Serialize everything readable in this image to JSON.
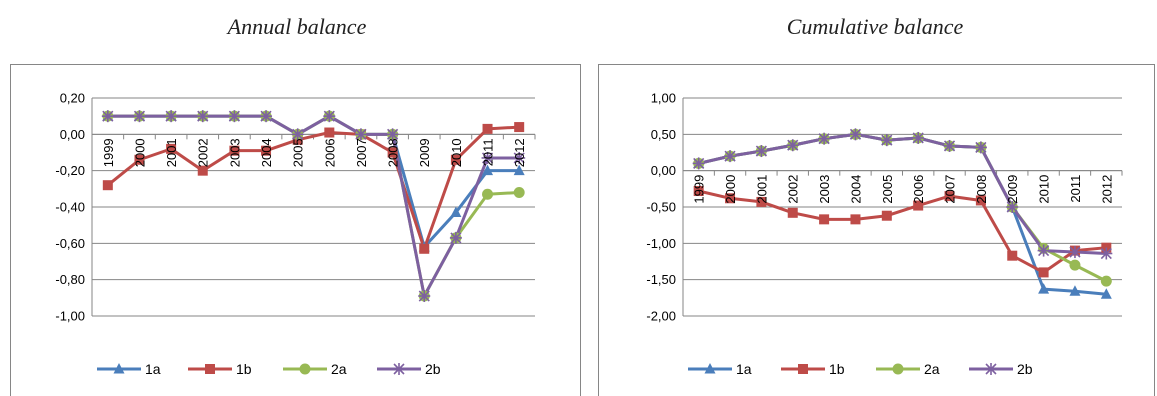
{
  "chart_data": [
    {
      "type": "line",
      "title": "Annual balance",
      "categories": [
        "1999",
        "2000",
        "2001",
        "2002",
        "2003",
        "2004",
        "2005",
        "2006",
        "2007",
        "2008",
        "2009",
        "2010",
        "2011",
        "2012"
      ],
      "ylim": [
        -1.0,
        0.2
      ],
      "yticks": [
        "0,20",
        "0,00",
        "-0,20",
        "-0,40",
        "-0,60",
        "-0,80",
        "-1,00"
      ],
      "ytick_values": [
        0.2,
        0.0,
        -0.2,
        -0.4,
        -0.6,
        -0.8,
        -1.0
      ],
      "grid": true,
      "legend_position": "bottom",
      "series": [
        {
          "name": "1a",
          "color": "#4a7ebb",
          "marker": "triangle",
          "values": [
            0.1,
            0.1,
            0.1,
            0.1,
            0.1,
            0.1,
            0.0,
            0.1,
            0.0,
            0.0,
            -0.62,
            -0.43,
            -0.2,
            -0.2
          ]
        },
        {
          "name": "1b",
          "color": "#be4b48",
          "marker": "square",
          "values": [
            -0.28,
            -0.14,
            -0.08,
            -0.2,
            -0.09,
            -0.09,
            -0.03,
            0.01,
            0.0,
            -0.1,
            -0.63,
            -0.14,
            0.03,
            0.04
          ]
        },
        {
          "name": "2a",
          "color": "#98b954",
          "marker": "circle",
          "values": [
            0.1,
            0.1,
            0.1,
            0.1,
            0.1,
            0.1,
            0.0,
            0.1,
            0.0,
            0.0,
            -0.89,
            -0.57,
            -0.33,
            -0.32
          ]
        },
        {
          "name": "2b",
          "color": "#7d60a0",
          "marker": "star",
          "values": [
            0.1,
            0.1,
            0.1,
            0.1,
            0.1,
            0.1,
            0.0,
            0.1,
            0.0,
            0.0,
            -0.89,
            -0.57,
            -0.13,
            -0.13
          ]
        }
      ]
    },
    {
      "type": "line",
      "title": "Cumulative balance",
      "categories": [
        "1999",
        "2000",
        "2001",
        "2002",
        "2003",
        "2004",
        "2005",
        "2006",
        "2007",
        "2008",
        "2009",
        "2010",
        "2011",
        "2012"
      ],
      "ylim": [
        -2.0,
        1.0
      ],
      "yticks": [
        "1,00",
        "0,50",
        "0,00",
        "-0,50",
        "-1,00",
        "-1,50",
        "-2,00"
      ],
      "ytick_values": [
        1.0,
        0.5,
        0.0,
        -0.5,
        -1.0,
        -1.5,
        -2.0
      ],
      "grid": true,
      "legend_position": "bottom",
      "series": [
        {
          "name": "1a",
          "color": "#4a7ebb",
          "marker": "triangle",
          "values": [
            0.1,
            0.2,
            0.27,
            0.35,
            0.44,
            0.5,
            0.42,
            0.45,
            0.34,
            0.32,
            -0.5,
            -1.63,
            -1.66,
            -1.7
          ]
        },
        {
          "name": "1b",
          "color": "#be4b48",
          "marker": "square",
          "values": [
            -0.28,
            -0.38,
            -0.43,
            -0.58,
            -0.67,
            -0.67,
            -0.62,
            -0.48,
            -0.35,
            -0.41,
            -1.17,
            -1.4,
            -1.1,
            -1.06
          ]
        },
        {
          "name": "2a",
          "color": "#98b954",
          "marker": "circle",
          "values": [
            0.1,
            0.2,
            0.27,
            0.35,
            0.44,
            0.5,
            0.42,
            0.45,
            0.34,
            0.32,
            -0.5,
            -1.07,
            -1.3,
            -1.52
          ]
        },
        {
          "name": "2b",
          "color": "#7d60a0",
          "marker": "star",
          "values": [
            0.1,
            0.2,
            0.27,
            0.35,
            0.44,
            0.5,
            0.42,
            0.45,
            0.34,
            0.32,
            -0.5,
            -1.1,
            -1.12,
            -1.14
          ]
        }
      ]
    }
  ]
}
